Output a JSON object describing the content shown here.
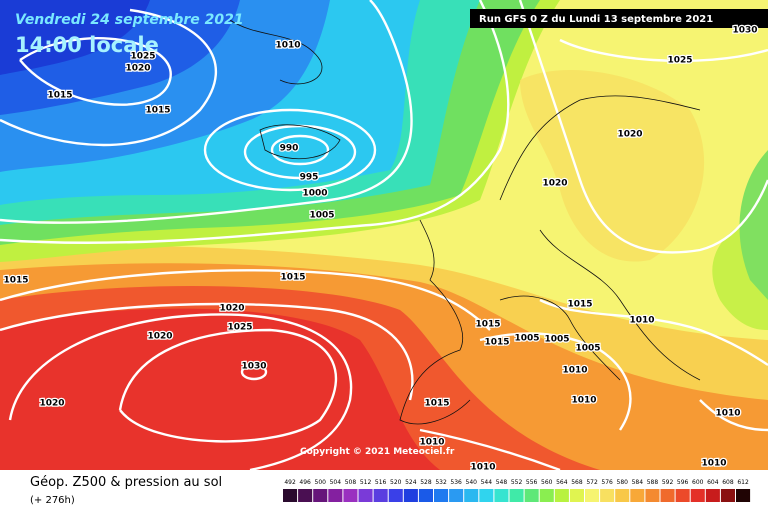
{
  "header": {
    "date": "Vendredi 24 septembre 2021",
    "time": "14:00 locale",
    "run": "Run GFS 0 Z du Lundi 13 septembre 2021"
  },
  "copyright": "Copyright © 2021 Meteociel.fr",
  "footer": {
    "title": "Géop. Z500 & pression au sol",
    "lead": "(+ 276h)"
  },
  "isobars": [
    "1010",
    "1025",
    "1020",
    "1015",
    "1015",
    "990",
    "995",
    "1000",
    "1005",
    "1025",
    "1020",
    "1020",
    "1015",
    "1015",
    "1020",
    "1025",
    "1020",
    "1030",
    "1020",
    "1015",
    "1015",
    "1010",
    "1015",
    "1005",
    "1005",
    "1005",
    "1010",
    "1010",
    "1015",
    "1010",
    "1010",
    "1010",
    "1010",
    "1030"
  ],
  "legend": {
    "labels": [
      "492",
      "496",
      "500",
      "504",
      "508",
      "512",
      "516",
      "520",
      "524",
      "528",
      "532",
      "536",
      "540",
      "544",
      "548",
      "552",
      "556",
      "560",
      "564",
      "568",
      "572",
      "576",
      "580",
      "584",
      "588",
      "592",
      "596",
      "600",
      "604",
      "608",
      "612"
    ],
    "colors": [
      "#2a0a2e",
      "#4a0f52",
      "#66157a",
      "#8420a0",
      "#9a30c0",
      "#7a3ad8",
      "#5a3ee0",
      "#3a40e8",
      "#1f3fe0",
      "#1a5ae8",
      "#1f7af0",
      "#2a9af2",
      "#2ab8f0",
      "#30d4ee",
      "#36e4d0",
      "#40eaa8",
      "#5ee878",
      "#8aee50",
      "#b8f240",
      "#e0f450",
      "#f6f470",
      "#f8e060",
      "#f8c848",
      "#f8a838",
      "#f48a30",
      "#f06a2c",
      "#ec4a2a",
      "#e43028",
      "#c81c1c",
      "#8a1010",
      "#200404"
    ]
  }
}
